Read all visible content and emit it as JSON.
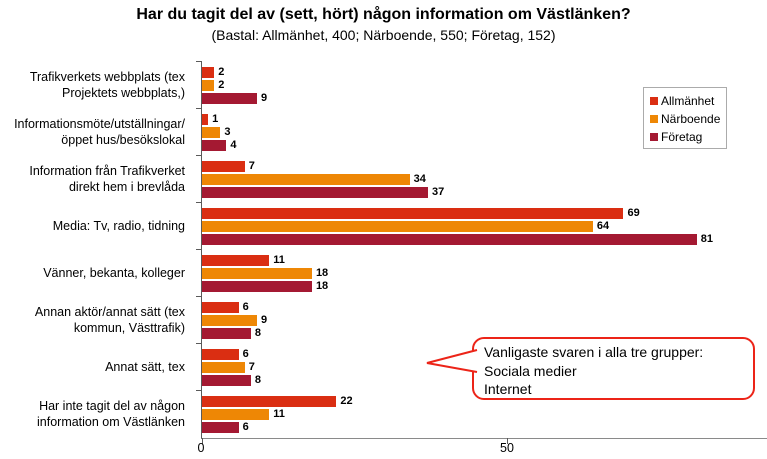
{
  "title": "Har du tagit del av (sett, hört) någon information om Västlänken?",
  "subtitle": "(Bastal: Allmänhet, 400; Närboende, 550; Företag, 152)",
  "axis": {
    "tick_labels": [
      "0",
      "50"
    ],
    "tick_values": [
      0,
      50
    ],
    "max": 92.5
  },
  "legend": {
    "position": "top-right",
    "items": [
      {
        "label": "Allmänhet",
        "color": "#da2e12"
      },
      {
        "label": "Närboende",
        "color": "#ee8705"
      },
      {
        "label": "Företag",
        "color": "#a41932"
      }
    ]
  },
  "callout": {
    "lines": [
      "Vanligaste svaren i alla tre grupper:",
      "Sociala medier",
      "Internet"
    ],
    "border_color": "#ec2418"
  },
  "chart_data": {
    "type": "bar",
    "orientation": "horizontal",
    "title": "Har du tagit del av (sett, hört) någon information om Västlänken?",
    "subtitle": "(Bastal: Allmänhet, 400; Närboende, 550; Företag, 152)",
    "xlim": [
      0,
      92.5
    ],
    "grid": false,
    "categories": [
      "Trafikverkets webbplats (tex\nProjektets webbplats,)",
      "Informationsmöte/utställningar/\nöppet hus/besökslokal",
      "Information från Trafikverket\ndirekt hem i brevlåda",
      "Media: Tv, radio, tidning",
      "Vänner, bekanta, kolleger",
      "Annan aktör/annat sätt (tex\nkommun, Västtrafik)",
      "Annat sätt, tex",
      "Har inte tagit del av någon\ninformation om Västlänken"
    ],
    "series": [
      {
        "name": "Allmänhet",
        "color": "#da2e12",
        "values": [
          2,
          1,
          7,
          69,
          11,
          6,
          6,
          22
        ]
      },
      {
        "name": "Närboende",
        "color": "#ee8705",
        "values": [
          2,
          3,
          34,
          64,
          18,
          9,
          7,
          11
        ]
      },
      {
        "name": "Företag",
        "color": "#a41932",
        "values": [
          9,
          4,
          37,
          81,
          18,
          8,
          8,
          6
        ]
      }
    ]
  }
}
